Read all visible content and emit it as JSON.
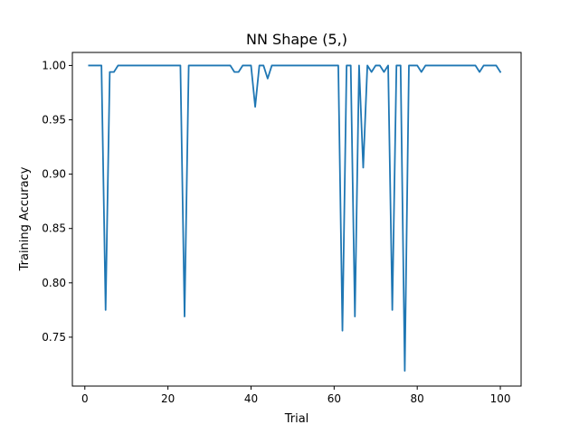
{
  "chart_data": {
    "type": "line",
    "title": "NN Shape (5,)",
    "xlabel": "Trial",
    "ylabel": "Training Accuracy",
    "xlim": [
      -3,
      105
    ],
    "ylim": [
      0.705,
      1.012
    ],
    "xticks": [
      0,
      20,
      40,
      60,
      80,
      100
    ],
    "xtick_labels": [
      "0",
      "20",
      "40",
      "60",
      "80",
      "100"
    ],
    "yticks": [
      0.75,
      0.8,
      0.85,
      0.9,
      0.95,
      1.0
    ],
    "ytick_labels": [
      "0.75",
      "0.80",
      "0.85",
      "0.90",
      "0.95",
      "1.00"
    ],
    "grid": false,
    "color": "#1f77b4",
    "series": [
      {
        "x": [
          1,
          2,
          3,
          4,
          5,
          6,
          7,
          8,
          9,
          10,
          11,
          12,
          13,
          14,
          15,
          16,
          17,
          18,
          19,
          20,
          21,
          22,
          23,
          24,
          25,
          26,
          27,
          28,
          29,
          30,
          31,
          32,
          33,
          34,
          35,
          36,
          37,
          38,
          39,
          40,
          41,
          42,
          43,
          44,
          45,
          46,
          47,
          48,
          49,
          50,
          51,
          52,
          53,
          54,
          55,
          56,
          57,
          58,
          59,
          60,
          61,
          62,
          63,
          64,
          65,
          66,
          67,
          68,
          69,
          70,
          71,
          72,
          73,
          74,
          75,
          76,
          77,
          78,
          79,
          80,
          81,
          82,
          83,
          84,
          85,
          86,
          87,
          88,
          89,
          90,
          91,
          92,
          93,
          94,
          95,
          96,
          97,
          98,
          99,
          100
        ],
        "y": [
          1.0,
          1.0,
          1.0,
          1.0,
          0.775,
          0.994,
          0.994,
          1.0,
          1.0,
          1.0,
          1.0,
          1.0,
          1.0,
          1.0,
          1.0,
          1.0,
          1.0,
          1.0,
          1.0,
          1.0,
          1.0,
          1.0,
          1.0,
          0.769,
          1.0,
          1.0,
          1.0,
          1.0,
          1.0,
          1.0,
          1.0,
          1.0,
          1.0,
          1.0,
          1.0,
          0.994,
          0.994,
          1.0,
          1.0,
          1.0,
          0.962,
          1.0,
          1.0,
          0.988,
          1.0,
          1.0,
          1.0,
          1.0,
          1.0,
          1.0,
          1.0,
          1.0,
          1.0,
          1.0,
          1.0,
          1.0,
          1.0,
          1.0,
          1.0,
          1.0,
          1.0,
          0.756,
          1.0,
          1.0,
          0.769,
          1.0,
          0.906,
          1.0,
          0.994,
          1.0,
          1.0,
          0.994,
          1.0,
          0.775,
          1.0,
          1.0,
          0.719,
          1.0,
          1.0,
          1.0,
          0.994,
          1.0,
          1.0,
          1.0,
          1.0,
          1.0,
          1.0,
          1.0,
          1.0,
          1.0,
          1.0,
          1.0,
          1.0,
          1.0,
          0.994,
          1.0,
          1.0,
          1.0,
          1.0,
          0.994
        ]
      }
    ]
  }
}
